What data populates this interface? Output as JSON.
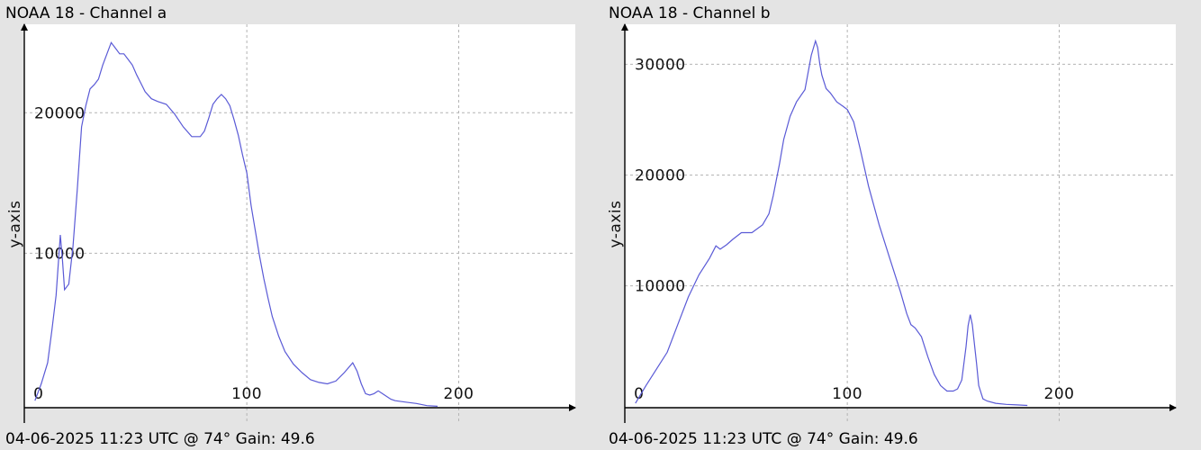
{
  "app": {
    "window_title": ""
  },
  "chart_data": [
    {
      "type": "line",
      "title": "NOAA 18 - Channel a",
      "footer": "04-06-2025 11:23 UTC @ 74° Gain: 49.6",
      "xlabel": "",
      "ylabel": "y-axis",
      "xlim": [
        -5,
        255
      ],
      "ylim": [
        -1000,
        26300
      ],
      "x_ticks": [
        0,
        100,
        200
      ],
      "y_ticks": [
        10000,
        20000
      ],
      "grid": true,
      "line_color": "#5a5ad6",
      "series": [
        {
          "x": [
            0,
            3,
            6,
            8,
            10,
            12,
            13,
            14,
            16,
            18,
            20,
            22,
            24,
            26,
            28,
            30,
            32,
            34,
            36,
            38,
            40,
            42,
            44,
            46,
            48,
            50,
            52,
            55,
            58,
            62,
            66,
            70,
            74,
            78,
            80,
            82,
            84,
            86,
            88,
            90,
            92,
            94,
            96,
            98,
            100,
            102,
            104,
            106,
            108,
            110,
            112,
            115,
            118,
            122,
            126,
            130,
            134,
            138,
            142,
            146,
            150,
            152,
            154,
            156,
            158,
            160,
            162,
            164,
            166,
            168,
            170,
            175,
            180,
            185,
            190
          ],
          "values": [
            -500,
            700,
            2200,
            4500,
            7000,
            11300,
            9500,
            7400,
            7800,
            10500,
            14500,
            19000,
            20500,
            21700,
            22000,
            22400,
            23400,
            24200,
            25000,
            24600,
            24200,
            24200,
            23800,
            23400,
            22700,
            22100,
            21500,
            21000,
            20800,
            20600,
            19900,
            19000,
            18300,
            18300,
            18700,
            19600,
            20600,
            21000,
            21300,
            21000,
            20500,
            19500,
            18400,
            17000,
            15700,
            13400,
            11600,
            9800,
            8200,
            6800,
            5500,
            4100,
            3000,
            2100,
            1500,
            1000,
            800,
            700,
            900,
            1500,
            2200,
            1600,
            700,
            0,
            -100,
            0,
            200,
            0,
            -200,
            -400,
            -500,
            -600,
            -700,
            -850,
            -900
          ]
        }
      ]
    },
    {
      "type": "line",
      "title": "NOAA 18 - Channel b",
      "footer": "04-06-2025 11:23 UTC @ 74° Gain: 49.6",
      "xlabel": "",
      "ylabel": "y-axis",
      "xlim": [
        -5,
        255
      ],
      "ylim": [
        -1000,
        33600
      ],
      "x_ticks": [
        0,
        100,
        200
      ],
      "y_ticks": [
        10000,
        20000,
        30000
      ],
      "grid": true,
      "line_color": "#5a5ad6",
      "series": [
        {
          "x": [
            0,
            5,
            10,
            15,
            20,
            25,
            30,
            35,
            38,
            40,
            43,
            46,
            50,
            55,
            60,
            63,
            65,
            68,
            70,
            73,
            76,
            80,
            83,
            85,
            86,
            87,
            88,
            90,
            92,
            95,
            98,
            100,
            103,
            106,
            110,
            115,
            120,
            125,
            128,
            130,
            132,
            135,
            138,
            141,
            144,
            147,
            150,
            152,
            154,
            156,
            157,
            158,
            159,
            160,
            161,
            162,
            164,
            166,
            170,
            175,
            180,
            185
          ],
          "values": [
            -600,
            1000,
            2500,
            4000,
            6500,
            9000,
            11000,
            12500,
            13600,
            13300,
            13700,
            14200,
            14800,
            14800,
            15500,
            16500,
            18100,
            21000,
            23200,
            25300,
            26600,
            27700,
            30800,
            32100,
            31500,
            30000,
            29000,
            27800,
            27400,
            26600,
            26200,
            25900,
            24800,
            22400,
            19000,
            15500,
            12500,
            9500,
            7500,
            6500,
            6200,
            5400,
            3600,
            2000,
            1000,
            500,
            500,
            700,
            1500,
            4500,
            6400,
            7400,
            6500,
            4700,
            3000,
            1000,
            -200,
            -400,
            -600,
            -700,
            -750,
            -800
          ]
        }
      ]
    }
  ]
}
